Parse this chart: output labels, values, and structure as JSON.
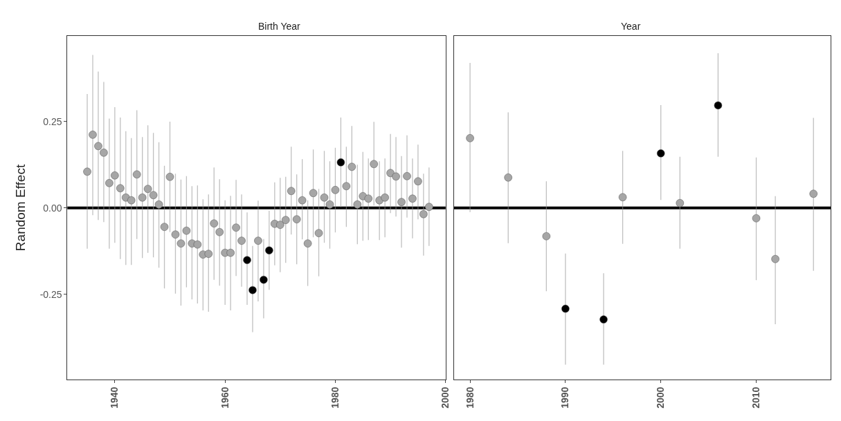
{
  "chart_data": [
    {
      "type": "scatter",
      "title": "Birth Year",
      "ylabel": "Random Effect",
      "x": [
        1935,
        1936,
        1937,
        1938,
        1939,
        1940,
        1941,
        1942,
        1943,
        1944,
        1945,
        1946,
        1947,
        1948,
        1949,
        1950,
        1951,
        1952,
        1953,
        1954,
        1955,
        1956,
        1957,
        1958,
        1959,
        1960,
        1961,
        1962,
        1963,
        1964,
        1965,
        1966,
        1967,
        1968,
        1969,
        1970,
        1971,
        1972,
        1973,
        1974,
        1975,
        1976,
        1977,
        1978,
        1979,
        1980,
        1981,
        1982,
        1983,
        1984,
        1985,
        1986,
        1987,
        1988,
        1989,
        1990,
        1991,
        1992,
        1993,
        1994,
        1995,
        1996,
        1997
      ],
      "values": [
        0.105,
        0.212,
        0.179,
        0.16,
        0.072,
        0.094,
        0.057,
        0.03,
        0.022,
        0.097,
        0.03,
        0.055,
        0.037,
        0.01,
        -0.055,
        0.09,
        -0.077,
        -0.103,
        -0.066,
        -0.103,
        -0.106,
        -0.135,
        -0.133,
        -0.045,
        -0.07,
        -0.13,
        -0.13,
        -0.057,
        -0.095,
        -0.151,
        -0.238,
        -0.095,
        -0.208,
        -0.123,
        -0.046,
        -0.049,
        -0.035,
        0.049,
        -0.033,
        0.022,
        -0.103,
        0.043,
        -0.073,
        0.03,
        0.01,
        0.052,
        0.132,
        0.063,
        0.119,
        0.01,
        0.034,
        0.027,
        0.127,
        0.022,
        0.03,
        0.101,
        0.091,
        0.017,
        0.092,
        0.027,
        0.077,
        -0.018,
        0.003
      ],
      "errors": [
        [
          -0.118,
          0.33
        ],
        [
          -0.021,
          0.443
        ],
        [
          -0.035,
          0.395
        ],
        [
          -0.041,
          0.365
        ],
        [
          -0.118,
          0.259
        ],
        [
          -0.101,
          0.292
        ],
        [
          -0.148,
          0.262
        ],
        [
          -0.165,
          0.222
        ],
        [
          -0.165,
          0.202
        ],
        [
          -0.09,
          0.283
        ],
        [
          -0.145,
          0.205
        ],
        [
          -0.13,
          0.239
        ],
        [
          -0.143,
          0.217
        ],
        [
          -0.173,
          0.19
        ],
        [
          -0.233,
          0.122
        ],
        [
          -0.07,
          0.25
        ],
        [
          -0.248,
          0.099
        ],
        [
          -0.283,
          0.082
        ],
        [
          -0.23,
          0.092
        ],
        [
          -0.265,
          0.063
        ],
        [
          -0.277,
          0.065
        ],
        [
          -0.297,
          0.025
        ],
        [
          -0.301,
          0.039
        ],
        [
          -0.208,
          0.117
        ],
        [
          -0.225,
          0.083
        ],
        [
          -0.281,
          0.022
        ],
        [
          -0.297,
          0.035
        ],
        [
          -0.197,
          0.081
        ],
        [
          -0.228,
          0.039
        ],
        [
          -0.281,
          -0.013
        ],
        [
          -0.36,
          -0.11
        ],
        [
          -0.271,
          0.021
        ],
        [
          -0.32,
          -0.09
        ],
        [
          -0.237,
          -0.008
        ],
        [
          -0.166,
          0.074
        ],
        [
          -0.186,
          0.087
        ],
        [
          -0.159,
          0.09
        ],
        [
          -0.077,
          0.177
        ],
        [
          -0.163,
          0.097
        ],
        [
          -0.091,
          0.141
        ],
        [
          -0.226,
          0.022
        ],
        [
          -0.085,
          0.169
        ],
        [
          -0.198,
          0.055
        ],
        [
          -0.101,
          0.165
        ],
        [
          -0.118,
          0.135
        ],
        [
          -0.071,
          0.174
        ],
        [
          0.002,
          0.262
        ],
        [
          -0.055,
          0.177
        ],
        [
          0.002,
          0.237
        ],
        [
          -0.105,
          0.125
        ],
        [
          -0.095,
          0.162
        ],
        [
          -0.093,
          0.143
        ],
        [
          0.007,
          0.249
        ],
        [
          -0.093,
          0.135
        ],
        [
          -0.085,
          0.143
        ],
        [
          -0.015,
          0.214
        ],
        [
          -0.025,
          0.205
        ],
        [
          -0.115,
          0.15
        ],
        [
          -0.028,
          0.21
        ],
        [
          -0.088,
          0.143
        ],
        [
          -0.033,
          0.183
        ],
        [
          -0.138,
          0.099
        ],
        [
          -0.11,
          0.117
        ]
      ],
      "colors": [
        "#a6a6a6",
        "#a6a6a6",
        "#a6a6a6",
        "#a6a6a6",
        "#a6a6a6",
        "#a6a6a6",
        "#a6a6a6",
        "#a6a6a6",
        "#a6a6a6",
        "#a6a6a6",
        "#a6a6a6",
        "#a6a6a6",
        "#a6a6a6",
        "#a6a6a6",
        "#a6a6a6",
        "#a6a6a6",
        "#a6a6a6",
        "#a6a6a6",
        "#a6a6a6",
        "#a6a6a6",
        "#a6a6a6",
        "#a6a6a6",
        "#a6a6a6",
        "#a6a6a6",
        "#a6a6a6",
        "#a6a6a6",
        "#a6a6a6",
        "#a6a6a6",
        "#a6a6a6",
        "#000000",
        "#000000",
        "#a6a6a6",
        "#000000",
        "#000000",
        "#a6a6a6",
        "#a6a6a6",
        "#a6a6a6",
        "#a6a6a6",
        "#a6a6a6",
        "#a6a6a6",
        "#a6a6a6",
        "#a6a6a6",
        "#a6a6a6",
        "#a6a6a6",
        "#a6a6a6",
        "#a6a6a6",
        "#000000",
        "#a6a6a6",
        "#a6a6a6",
        "#a6a6a6",
        "#a6a6a6",
        "#a6a6a6",
        "#a6a6a6",
        "#a6a6a6",
        "#a6a6a6",
        "#a6a6a6",
        "#a6a6a6",
        "#a6a6a6",
        "#a6a6a6",
        "#a6a6a6",
        "#a6a6a6",
        "#a6a6a6",
        "#a6a6a6"
      ],
      "xlim": [
        1931.4,
        2000
      ],
      "xticks": [
        1940,
        1960,
        1980,
        2000
      ],
      "ylim": [
        -0.497,
        0.498
      ],
      "yticks": [
        {
          "value": -0.25,
          "label": "-0.25"
        },
        {
          "value": 0,
          "label": "0.00"
        },
        {
          "value": 0.25,
          "label": "0.25"
        }
      ],
      "ref_lines": [
        {
          "axis": "y",
          "value": 0,
          "color": "#000000"
        }
      ],
      "marker": "circle",
      "grid": false,
      "legend": false
    },
    {
      "type": "scatter",
      "title": "Year",
      "x": [
        1980,
        1984,
        1988,
        1990,
        1994,
        1996,
        2000,
        2002,
        2006,
        2010,
        2012,
        2016
      ],
      "values": [
        0.202,
        0.088,
        -0.082,
        -0.292,
        -0.323,
        0.031,
        0.158,
        0.014,
        0.297,
        -0.03,
        -0.148,
        0.041
      ],
      "errors": [
        [
          -0.012,
          0.42
        ],
        [
          -0.102,
          0.277
        ],
        [
          -0.241,
          0.077
        ],
        [
          -0.454,
          -0.132
        ],
        [
          -0.454,
          -0.189
        ],
        [
          -0.104,
          0.165
        ],
        [
          0.023,
          0.298
        ],
        [
          -0.118,
          0.148
        ],
        [
          0.148,
          0.448
        ],
        [
          -0.209,
          0.146
        ],
        [
          -0.337,
          0.034
        ],
        [
          -0.182,
          0.261
        ]
      ],
      "colors": [
        "#a6a6a6",
        "#a6a6a6",
        "#a6a6a6",
        "#000000",
        "#000000",
        "#a6a6a6",
        "#000000",
        "#a6a6a6",
        "#000000",
        "#a6a6a6",
        "#a6a6a6",
        "#a6a6a6"
      ],
      "xlim": [
        1978.3,
        2017.8
      ],
      "xticks": [
        1980,
        1990,
        2000,
        2010
      ],
      "ylim": [
        -0.497,
        0.498
      ],
      "tick_labels": "x",
      "ref_lines": [
        {
          "axis": "y",
          "value": 0,
          "color": "#000000"
        }
      ],
      "marker": "circle",
      "grid": false,
      "legend": false
    }
  ]
}
